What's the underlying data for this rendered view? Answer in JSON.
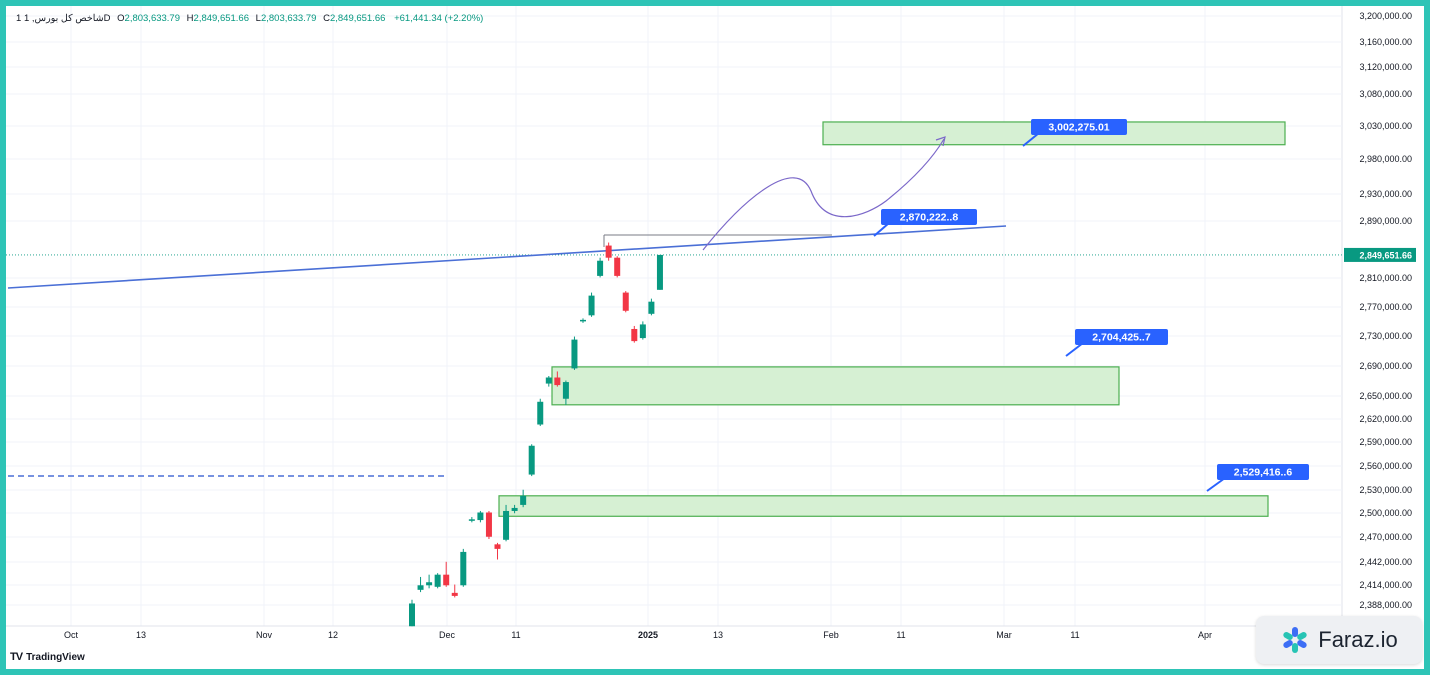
{
  "header": {
    "symbol": "1 شاخص کل بورس, 1D",
    "open_label": "O",
    "open": "2,803,633.79",
    "high_label": "H",
    "high": "2,849,651.66",
    "low_label": "L",
    "low": "2,803,633.79",
    "close_label": "C",
    "close": "2,849,651.66",
    "change": "+61,441.34 (+2.20%)"
  },
  "price_axis": {
    "ticks": [
      "3,200,000.00",
      "3,160,000.00",
      "3,120,000.00",
      "3,080,000.00",
      "3,030,000.00",
      "2,980,000.00",
      "2,930,000.00",
      "2,890,000.00",
      "2,810,000.00",
      "2,770,000.00",
      "2,730,000.00",
      "2,690,000.00",
      "2,650,000.00",
      "2,620,000.00",
      "2,590,000.00",
      "2,560,000.00",
      "2,530,000.00",
      "2,500,000.00",
      "2,470,000.00",
      "2,442,000.00",
      "2,414,000.00",
      "2,388,000.00"
    ],
    "current_price": "2,849,651.66"
  },
  "time_axis": {
    "ticks": [
      "Oct",
      "13",
      "Nov",
      "12",
      "Dec",
      "11",
      "2025",
      "13",
      "Feb",
      "11",
      "Mar",
      "11",
      "Apr"
    ]
  },
  "annotations": {
    "target_top": "3,002,275.01",
    "trendline_label": "2,870,222..8",
    "zone_mid": "2,704,425..7",
    "zone_low": "2,529,416..6"
  },
  "colors": {
    "up": "#089981",
    "down": "#f23645",
    "trendline": "#4a6fd6",
    "zone_fill": "#d6f0d3",
    "zone_border": "#4caf50",
    "label_bg": "#2962ff",
    "frame": "#2ec4b6"
  },
  "branding": {
    "tradingview": "TradingView",
    "watermark": "Faraz.io"
  },
  "chart_data": {
    "type": "candlestick",
    "timeframe": "1D",
    "y_range": [
      2388000,
      3200000
    ],
    "candles": [
      {
        "o": 2360000,
        "h": 2395000,
        "l": 2360000,
        "c": 2390000
      },
      {
        "o": 2408000,
        "h": 2425000,
        "l": 2405000,
        "c": 2414000
      },
      {
        "o": 2414000,
        "h": 2428000,
        "l": 2410000,
        "c": 2418000
      },
      {
        "o": 2412000,
        "h": 2430000,
        "l": 2410000,
        "c": 2428000
      },
      {
        "o": 2428000,
        "h": 2445000,
        "l": 2412000,
        "c": 2414000
      },
      {
        "o": 2404000,
        "h": 2415000,
        "l": 2398000,
        "c": 2400000
      },
      {
        "o": 2414000,
        "h": 2462000,
        "l": 2412000,
        "c": 2458000
      },
      {
        "o": 2499000,
        "h": 2504000,
        "l": 2497000,
        "c": 2501000
      },
      {
        "o": 2500000,
        "h": 2512000,
        "l": 2497000,
        "c": 2510000
      },
      {
        "o": 2510000,
        "h": 2512000,
        "l": 2475000,
        "c": 2478000
      },
      {
        "o": 2468000,
        "h": 2470000,
        "l": 2448000,
        "c": 2462000
      },
      {
        "o": 2474000,
        "h": 2520000,
        "l": 2472000,
        "c": 2512000
      },
      {
        "o": 2512000,
        "h": 2520000,
        "l": 2509000,
        "c": 2516000
      },
      {
        "o": 2520000,
        "h": 2540000,
        "l": 2517000,
        "c": 2532000
      },
      {
        "o": 2560000,
        "h": 2600000,
        "l": 2558000,
        "c": 2598000
      },
      {
        "o": 2626000,
        "h": 2660000,
        "l": 2624000,
        "c": 2656000
      },
      {
        "o": 2680000,
        "h": 2690000,
        "l": 2676000,
        "c": 2688000
      },
      {
        "o": 2688000,
        "h": 2696000,
        "l": 2676000,
        "c": 2678000
      },
      {
        "o": 2660000,
        "h": 2684000,
        "l": 2652000,
        "c": 2682000
      },
      {
        "o": 2700000,
        "h": 2742000,
        "l": 2698000,
        "c": 2738000
      },
      {
        "o": 2762000,
        "h": 2766000,
        "l": 2760000,
        "c": 2764000
      },
      {
        "o": 2770000,
        "h": 2800000,
        "l": 2768000,
        "c": 2796000
      },
      {
        "o": 2822000,
        "h": 2846000,
        "l": 2820000,
        "c": 2842000
      },
      {
        "o": 2862000,
        "h": 2866000,
        "l": 2842000,
        "c": 2846000
      },
      {
        "o": 2846000,
        "h": 2848000,
        "l": 2820000,
        "c": 2822000
      },
      {
        "o": 2800000,
        "h": 2802000,
        "l": 2774000,
        "c": 2776000
      },
      {
        "o": 2752000,
        "h": 2756000,
        "l": 2734000,
        "c": 2736000
      },
      {
        "o": 2740000,
        "h": 2762000,
        "l": 2738000,
        "c": 2758000
      },
      {
        "o": 2772000,
        "h": 2792000,
        "l": 2770000,
        "c": 2788000
      },
      {
        "o": 2803634,
        "h": 2849652,
        "l": 2803634,
        "c": 2849652
      }
    ]
  }
}
